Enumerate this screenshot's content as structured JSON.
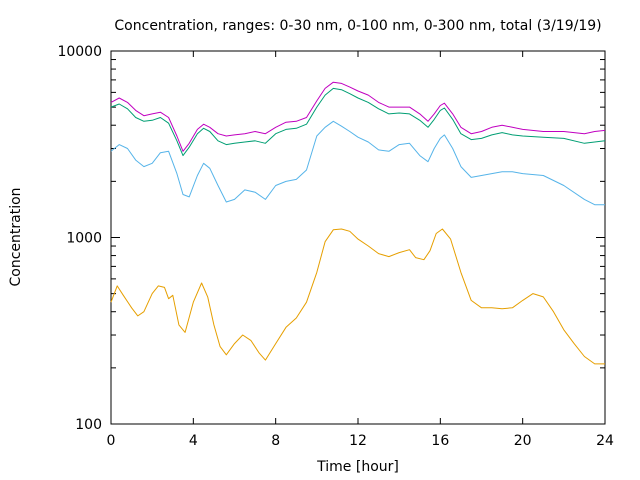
{
  "chart_data": {
    "type": "line",
    "title": "Concentration, ranges: 0-30 nm, 0-100 nm, 0-300 nm, total (3/19/19)",
    "xlabel": "Time [hour]",
    "ylabel": "Concentration",
    "xlim": [
      0,
      24
    ],
    "ylim": [
      100,
      10000
    ],
    "yscale": "log",
    "grid": false,
    "x_ticks": [
      0,
      4,
      8,
      12,
      16,
      20,
      24
    ],
    "x_tick_labels": [
      "0",
      "4",
      "8",
      "12",
      "16",
      "20",
      "24"
    ],
    "y_ticks": [
      100,
      1000,
      10000
    ],
    "y_tick_labels": [
      "100",
      "1000",
      "10000"
    ],
    "series": [
      {
        "color": "#c000c0",
        "points": [
          [
            0,
            5300
          ],
          [
            0.4,
            5600
          ],
          [
            0.8,
            5300
          ],
          [
            1.2,
            4800
          ],
          [
            1.6,
            4500
          ],
          [
            2,
            4600
          ],
          [
            2.4,
            4700
          ],
          [
            2.8,
            4400
          ],
          [
            3.2,
            3500
          ],
          [
            3.5,
            2900
          ],
          [
            3.8,
            3200
          ],
          [
            4.2,
            3800
          ],
          [
            4.5,
            4050
          ],
          [
            4.8,
            3900
          ],
          [
            5.2,
            3600
          ],
          [
            5.6,
            3500
          ],
          [
            6,
            3550
          ],
          [
            6.5,
            3600
          ],
          [
            7,
            3700
          ],
          [
            7.5,
            3600
          ],
          [
            8,
            3900
          ],
          [
            8.5,
            4150
          ],
          [
            9,
            4200
          ],
          [
            9.5,
            4400
          ],
          [
            10,
            5400
          ],
          [
            10.4,
            6300
          ],
          [
            10.8,
            6800
          ],
          [
            11.2,
            6700
          ],
          [
            11.6,
            6400
          ],
          [
            12,
            6100
          ],
          [
            12.5,
            5800
          ],
          [
            13,
            5300
          ],
          [
            13.5,
            5000
          ],
          [
            14,
            5000
          ],
          [
            14.5,
            5000
          ],
          [
            15,
            4600
          ],
          [
            15.4,
            4200
          ],
          [
            15.7,
            4600
          ],
          [
            16,
            5100
          ],
          [
            16.2,
            5250
          ],
          [
            16.6,
            4600
          ],
          [
            17,
            3900
          ],
          [
            17.5,
            3600
          ],
          [
            18,
            3700
          ],
          [
            18.5,
            3900
          ],
          [
            19,
            4000
          ],
          [
            19.5,
            3900
          ],
          [
            20,
            3800
          ],
          [
            21,
            3700
          ],
          [
            22,
            3700
          ],
          [
            23,
            3600
          ],
          [
            23.5,
            3700
          ],
          [
            24,
            3750
          ]
        ]
      },
      {
        "color": "#009e73",
        "points": [
          [
            0,
            5000
          ],
          [
            0.4,
            5200
          ],
          [
            0.8,
            4900
          ],
          [
            1.2,
            4400
          ],
          [
            1.6,
            4200
          ],
          [
            2,
            4250
          ],
          [
            2.4,
            4400
          ],
          [
            2.8,
            4100
          ],
          [
            3.2,
            3300
          ],
          [
            3.5,
            2750
          ],
          [
            3.8,
            3050
          ],
          [
            4.2,
            3600
          ],
          [
            4.5,
            3850
          ],
          [
            4.8,
            3700
          ],
          [
            5.2,
            3300
          ],
          [
            5.6,
            3150
          ],
          [
            6,
            3200
          ],
          [
            6.5,
            3250
          ],
          [
            7,
            3300
          ],
          [
            7.5,
            3200
          ],
          [
            8,
            3600
          ],
          [
            8.5,
            3800
          ],
          [
            9,
            3850
          ],
          [
            9.5,
            4050
          ],
          [
            10,
            5000
          ],
          [
            10.4,
            5800
          ],
          [
            10.8,
            6300
          ],
          [
            11.2,
            6200
          ],
          [
            11.6,
            5900
          ],
          [
            12,
            5600
          ],
          [
            12.5,
            5300
          ],
          [
            13,
            4900
          ],
          [
            13.5,
            4600
          ],
          [
            14,
            4650
          ],
          [
            14.5,
            4600
          ],
          [
            15,
            4250
          ],
          [
            15.4,
            3900
          ],
          [
            15.7,
            4300
          ],
          [
            16,
            4800
          ],
          [
            16.2,
            4950
          ],
          [
            16.6,
            4300
          ],
          [
            17,
            3600
          ],
          [
            17.5,
            3350
          ],
          [
            18,
            3400
          ],
          [
            18.5,
            3550
          ],
          [
            19,
            3650
          ],
          [
            19.5,
            3550
          ],
          [
            20,
            3500
          ],
          [
            21,
            3450
          ],
          [
            22,
            3400
          ],
          [
            23,
            3200
          ],
          [
            23.5,
            3250
          ],
          [
            24,
            3300
          ]
        ]
      },
      {
        "color": "#56b4e9",
        "points": [
          [
            0,
            2900
          ],
          [
            0.4,
            3150
          ],
          [
            0.8,
            3000
          ],
          [
            1.2,
            2600
          ],
          [
            1.6,
            2400
          ],
          [
            2,
            2500
          ],
          [
            2.4,
            2850
          ],
          [
            2.8,
            2900
          ],
          [
            3.2,
            2200
          ],
          [
            3.5,
            1700
          ],
          [
            3.8,
            1650
          ],
          [
            4.2,
            2150
          ],
          [
            4.5,
            2500
          ],
          [
            4.8,
            2350
          ],
          [
            5.2,
            1900
          ],
          [
            5.6,
            1550
          ],
          [
            6,
            1600
          ],
          [
            6.5,
            1800
          ],
          [
            7,
            1750
          ],
          [
            7.5,
            1600
          ],
          [
            8,
            1900
          ],
          [
            8.5,
            2000
          ],
          [
            9,
            2050
          ],
          [
            9.5,
            2300
          ],
          [
            10,
            3500
          ],
          [
            10.4,
            3900
          ],
          [
            10.8,
            4200
          ],
          [
            11.2,
            3950
          ],
          [
            11.6,
            3700
          ],
          [
            12,
            3450
          ],
          [
            12.5,
            3250
          ],
          [
            13,
            2950
          ],
          [
            13.5,
            2900
          ],
          [
            14,
            3150
          ],
          [
            14.5,
            3200
          ],
          [
            15,
            2750
          ],
          [
            15.4,
            2550
          ],
          [
            15.7,
            3000
          ],
          [
            16,
            3400
          ],
          [
            16.2,
            3550
          ],
          [
            16.6,
            3000
          ],
          [
            17,
            2400
          ],
          [
            17.5,
            2100
          ],
          [
            18,
            2150
          ],
          [
            18.5,
            2200
          ],
          [
            19,
            2250
          ],
          [
            19.5,
            2250
          ],
          [
            20,
            2200
          ],
          [
            21,
            2150
          ],
          [
            22,
            1900
          ],
          [
            23,
            1600
          ],
          [
            23.5,
            1500
          ],
          [
            24,
            1500
          ]
        ]
      },
      {
        "color": "#e69f00",
        "points": [
          [
            0,
            450
          ],
          [
            0.3,
            550
          ],
          [
            0.6,
            490
          ],
          [
            1,
            420
          ],
          [
            1.3,
            380
          ],
          [
            1.6,
            400
          ],
          [
            2,
            500
          ],
          [
            2.3,
            550
          ],
          [
            2.6,
            540
          ],
          [
            2.8,
            470
          ],
          [
            3,
            490
          ],
          [
            3.3,
            340
          ],
          [
            3.6,
            310
          ],
          [
            4,
            450
          ],
          [
            4.4,
            570
          ],
          [
            4.7,
            480
          ],
          [
            5,
            340
          ],
          [
            5.3,
            260
          ],
          [
            5.6,
            235
          ],
          [
            6,
            270
          ],
          [
            6.4,
            300
          ],
          [
            6.8,
            280
          ],
          [
            7.2,
            240
          ],
          [
            7.5,
            220
          ],
          [
            8,
            270
          ],
          [
            8.5,
            330
          ],
          [
            9,
            370
          ],
          [
            9.5,
            450
          ],
          [
            10,
            650
          ],
          [
            10.4,
            950
          ],
          [
            10.8,
            1100
          ],
          [
            11.2,
            1110
          ],
          [
            11.6,
            1080
          ],
          [
            12,
            980
          ],
          [
            12.5,
            900
          ],
          [
            13,
            820
          ],
          [
            13.5,
            790
          ],
          [
            14,
            830
          ],
          [
            14.5,
            860
          ],
          [
            14.8,
            780
          ],
          [
            15.2,
            760
          ],
          [
            15.5,
            850
          ],
          [
            15.8,
            1050
          ],
          [
            16.1,
            1110
          ],
          [
            16.5,
            980
          ],
          [
            17,
            650
          ],
          [
            17.5,
            460
          ],
          [
            18,
            420
          ],
          [
            18.5,
            420
          ],
          [
            19,
            415
          ],
          [
            19.5,
            420
          ],
          [
            20,
            460
          ],
          [
            20.5,
            500
          ],
          [
            21,
            480
          ],
          [
            21.5,
            400
          ],
          [
            22,
            320
          ],
          [
            22.5,
            270
          ],
          [
            23,
            230
          ],
          [
            23.5,
            210
          ],
          [
            24,
            210
          ]
        ]
      }
    ]
  }
}
